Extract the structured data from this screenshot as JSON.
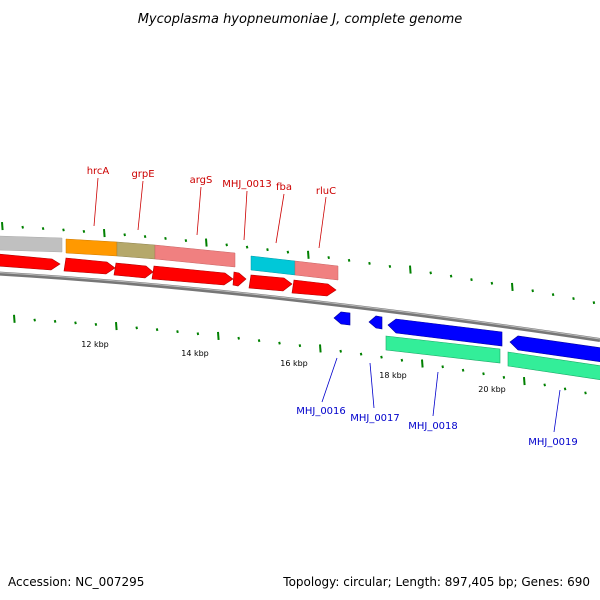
{
  "title": "Mycoplasma hyopneumoniae J, complete genome",
  "footer": {
    "accession": "Accession: NC_007295",
    "summary": "Topology: circular; Length: 897,405 bp; Genes: 690"
  },
  "colors": {
    "forward_label": "#cc0000",
    "reverse_label": "#0000cc",
    "backbone": "#888888",
    "tick": "#008000",
    "forward_cds": "#ff0000",
    "reverse_cds": "#0000ff",
    "grey_feature": "#c0c0c0",
    "orange_feature": "#ff9900",
    "olive_feature": "#b5a86a",
    "pink_feature": "#f08080",
    "cyan_feature": "#00c8d8",
    "green_feature": "#33ee99"
  },
  "forward_genes": [
    "hrcA",
    "grpE",
    "argS",
    "MHJ_0013",
    "fba",
    "rluC"
  ],
  "reverse_genes": [
    "MHJ_0016",
    "MHJ_0017",
    "MHJ_0018",
    "MHJ_0019"
  ],
  "kbp_labels": [
    "12 kbp",
    "14 kbp",
    "16 kbp",
    "18 kbp",
    "20 kbp"
  ]
}
